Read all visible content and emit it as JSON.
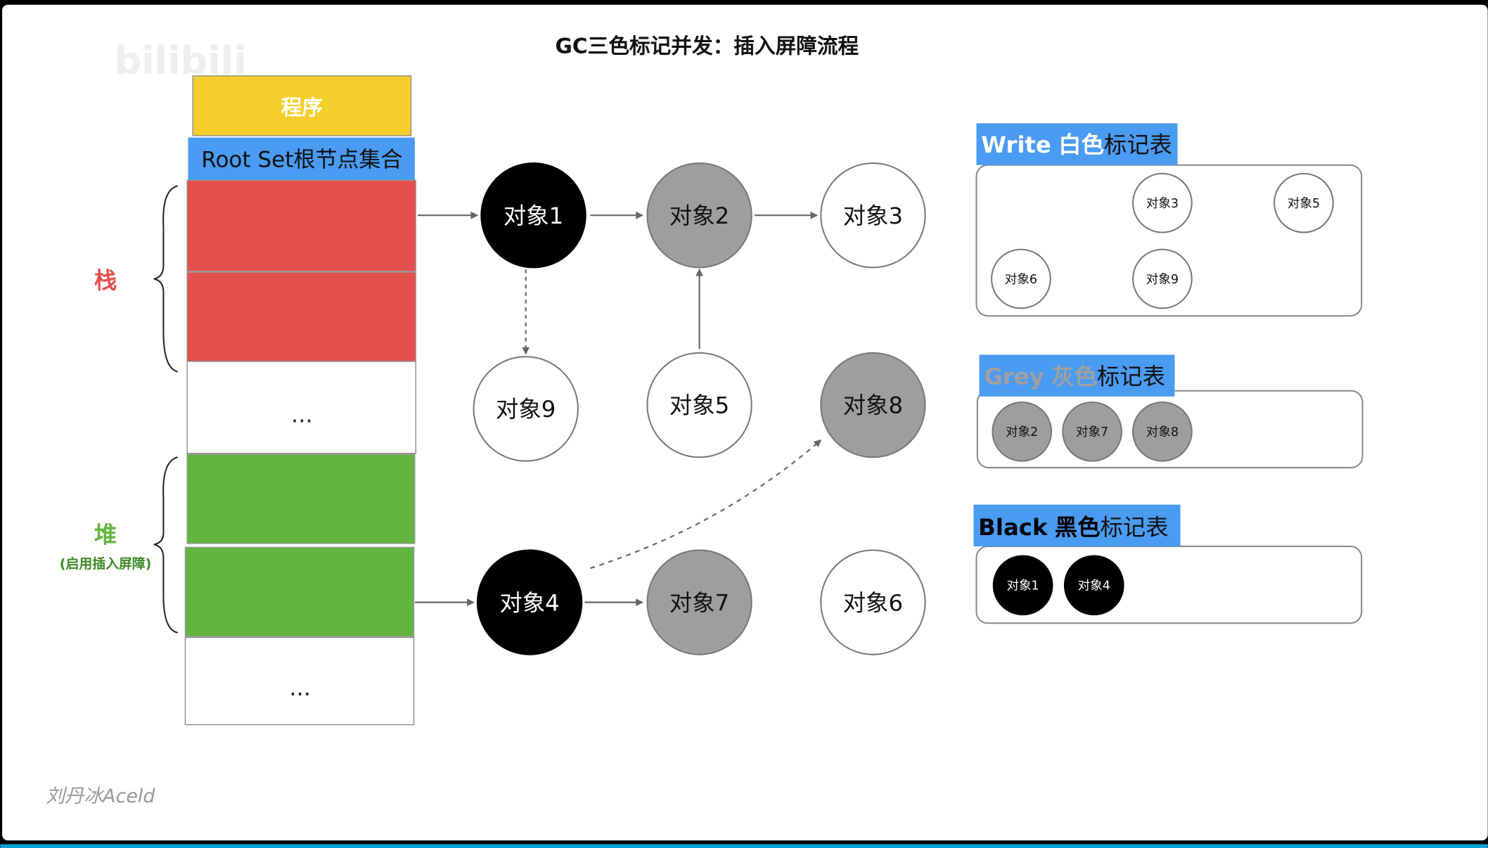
{
  "title": "GC三色标记并发：插入屏障流程",
  "watermark_logo": "bilibili",
  "author": "刘丹冰Aceld",
  "colors": {
    "program": "#F5CE2B",
    "root_set": "#4A9BF2",
    "stack": "#E5504C",
    "heap": "#62B53F",
    "grey": "#9E9E9E",
    "black": "#000000",
    "white": "#FFFFFF",
    "stack_label": "#E5504C",
    "heap_label": "#62B53F",
    "grey_title": "#A0A0A0"
  },
  "left": {
    "program": "程序",
    "root_set": "Root Set根节点集合",
    "stack_label": "栈",
    "heap_label": "堆",
    "heap_note": "(启用插入屏障)",
    "ellipsis": "..."
  },
  "objects": {
    "o1": {
      "label": "对象1",
      "color": "black"
    },
    "o2": {
      "label": "对象2",
      "color": "grey"
    },
    "o3": {
      "label": "对象3",
      "color": "white"
    },
    "o4": {
      "label": "对象4",
      "color": "black"
    },
    "o5": {
      "label": "对象5",
      "color": "white"
    },
    "o6": {
      "label": "对象6",
      "color": "white"
    },
    "o7": {
      "label": "对象7",
      "color": "grey"
    },
    "o8": {
      "label": "对象8",
      "color": "grey"
    },
    "o9": {
      "label": "对象9",
      "color": "white"
    }
  },
  "edges": [
    {
      "from": "stack",
      "to": "对象1",
      "style": "solid"
    },
    {
      "from": "对象1",
      "to": "对象2",
      "style": "solid"
    },
    {
      "from": "对象2",
      "to": "对象3",
      "style": "solid"
    },
    {
      "from": "对象1",
      "to": "对象9",
      "style": "dashed"
    },
    {
      "from": "对象5",
      "to": "对象2",
      "style": "solid"
    },
    {
      "from": "heap",
      "to": "对象4",
      "style": "solid"
    },
    {
      "from": "对象4",
      "to": "对象7",
      "style": "solid"
    },
    {
      "from": "对象4",
      "to": "对象8",
      "style": "dashed"
    }
  ],
  "tables": {
    "white": {
      "title_en": "Write",
      "title_color": "白色",
      "title_rest": "标记表",
      "items": [
        "对象3",
        "对象5",
        "对象6",
        "对象9"
      ]
    },
    "grey": {
      "title_en": "Grey",
      "title_color": "灰色",
      "title_rest": "标记表",
      "items": [
        "对象2",
        "对象7",
        "对象8"
      ]
    },
    "black": {
      "title_en": "Black",
      "title_color": "黑色",
      "title_rest": "标记表",
      "items": [
        "对象1",
        "对象4"
      ]
    }
  }
}
